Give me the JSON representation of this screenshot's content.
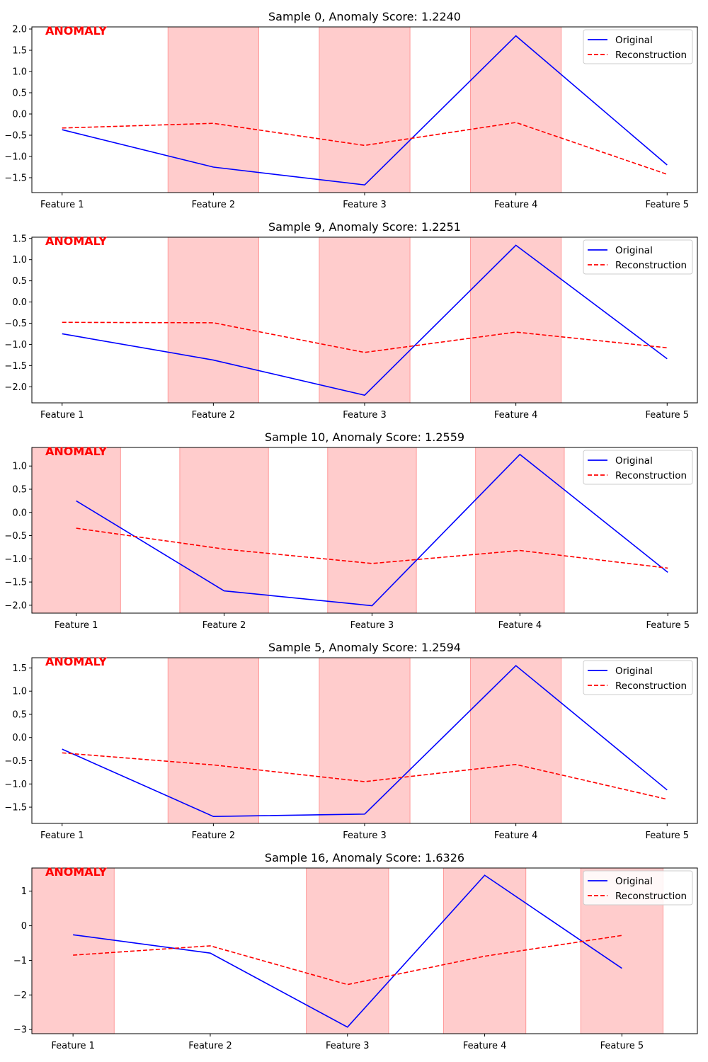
{
  "legend": {
    "original_label": "Original",
    "reconstruction_label": "Reconstruction",
    "original_color": "#0000ff",
    "reconstruction_color": "#ff0000"
  },
  "anomaly_label": "ANOMALY",
  "highlight_color": "#ff9999",
  "chart_data": [
    {
      "type": "line",
      "title": "Sample 0, Anomaly Score: 1.2240",
      "categories": [
        "Feature 1",
        "Feature 2",
        "Feature 3",
        "Feature 4",
        "Feature 5"
      ],
      "xlim": [
        -0.2,
        4.2
      ],
      "ylim": [
        -1.85,
        2.05
      ],
      "yticks": [
        -1.5,
        -1.0,
        -0.5,
        0.0,
        0.5,
        1.0,
        1.5,
        2.0
      ],
      "ytick_labels": [
        "−1.5",
        "−1.0",
        "−0.5",
        "0.0",
        "0.5",
        "1.0",
        "1.5",
        "2.0"
      ],
      "highlight_spans": [
        [
          0.7,
          1.3
        ],
        [
          1.7,
          2.3
        ],
        [
          2.7,
          3.3
        ]
      ],
      "series": [
        {
          "name": "Original",
          "values": [
            -0.37,
            -1.25,
            -1.67,
            1.84,
            -1.2
          ]
        },
        {
          "name": "Reconstruction",
          "values": [
            -0.33,
            -0.22,
            -0.74,
            -0.2,
            -1.42
          ]
        }
      ]
    },
    {
      "type": "line",
      "title": "Sample 9, Anomaly Score: 1.2251",
      "categories": [
        "Feature 1",
        "Feature 2",
        "Feature 3",
        "Feature 4",
        "Feature 5"
      ],
      "xlim": [
        -0.2,
        4.2
      ],
      "ylim": [
        -2.38,
        1.53
      ],
      "yticks": [
        -2.0,
        -1.5,
        -1.0,
        -0.5,
        0.0,
        0.5,
        1.0,
        1.5
      ],
      "ytick_labels": [
        "−2.0",
        "−1.5",
        "−1.0",
        "−0.5",
        "0.0",
        "0.5",
        "1.0",
        "1.5"
      ],
      "highlight_spans": [
        [
          0.7,
          1.3
        ],
        [
          1.7,
          2.3
        ],
        [
          2.7,
          3.3
        ]
      ],
      "series": [
        {
          "name": "Original",
          "values": [
            -0.75,
            -1.37,
            -2.2,
            1.34,
            -1.34
          ]
        },
        {
          "name": "Reconstruction",
          "values": [
            -0.48,
            -0.49,
            -1.19,
            -0.71,
            -1.08
          ]
        }
      ]
    },
    {
      "type": "line",
      "title": "Sample 10, Anomaly Score: 1.2559",
      "categories": [
        "Feature 1",
        "Feature 2",
        "Feature 3",
        "Feature 4",
        "Feature 5"
      ],
      "xlim": [
        -0.3,
        4.2
      ],
      "ylim": [
        -2.17,
        1.4
      ],
      "yticks": [
        -2.0,
        -1.5,
        -1.0,
        -0.5,
        0.0,
        0.5,
        1.0
      ],
      "ytick_labels": [
        "−2.0",
        "−1.5",
        "−1.0",
        "−0.5",
        "0.0",
        "0.5",
        "1.0"
      ],
      "highlight_spans": [
        [
          -0.3,
          0.3
        ],
        [
          0.7,
          1.3
        ],
        [
          1.7,
          2.3
        ],
        [
          2.7,
          3.3
        ]
      ],
      "series": [
        {
          "name": "Original",
          "values": [
            0.25,
            -1.69,
            -2.01,
            1.25,
            -1.29
          ]
        },
        {
          "name": "Reconstruction",
          "values": [
            -0.34,
            -0.79,
            -1.1,
            -0.82,
            -1.2
          ]
        }
      ]
    },
    {
      "type": "line",
      "title": "Sample 5, Anomaly Score: 1.2594",
      "categories": [
        "Feature 1",
        "Feature 2",
        "Feature 3",
        "Feature 4",
        "Feature 5"
      ],
      "xlim": [
        -0.2,
        4.2
      ],
      "ylim": [
        -1.85,
        1.72
      ],
      "yticks": [
        -1.5,
        -1.0,
        -0.5,
        0.0,
        0.5,
        1.0,
        1.5
      ],
      "ytick_labels": [
        "−1.5",
        "−1.0",
        "−0.5",
        "0.0",
        "0.5",
        "1.0",
        "1.5"
      ],
      "highlight_spans": [
        [
          0.7,
          1.3
        ],
        [
          1.7,
          2.3
        ],
        [
          2.7,
          3.3
        ]
      ],
      "series": [
        {
          "name": "Original",
          "values": [
            -0.25,
            -1.7,
            -1.65,
            1.55,
            -1.13
          ]
        },
        {
          "name": "Reconstruction",
          "values": [
            -0.33,
            -0.59,
            -0.95,
            -0.58,
            -1.33
          ]
        }
      ]
    },
    {
      "type": "line",
      "title": "Sample 16, Anomaly Score: 1.6326",
      "categories": [
        "Feature 1",
        "Feature 2",
        "Feature 3",
        "Feature 4",
        "Feature 5"
      ],
      "xlim": [
        -0.3,
        4.55
      ],
      "ylim": [
        -3.12,
        1.67
      ],
      "yticks": [
        -3,
        -2,
        -1,
        0,
        1
      ],
      "ytick_labels": [
        "−3",
        "−2",
        "−1",
        "0",
        "1"
      ],
      "highlight_spans": [
        [
          -0.3,
          0.3
        ],
        [
          1.7,
          2.3
        ],
        [
          2.7,
          3.3
        ],
        [
          3.7,
          4.3
        ]
      ],
      "series": [
        {
          "name": "Original",
          "values": [
            -0.26,
            -0.79,
            -2.93,
            1.46,
            -1.23
          ]
        },
        {
          "name": "Reconstruction",
          "values": [
            -0.85,
            -0.58,
            -1.7,
            -0.88,
            -0.28
          ]
        }
      ]
    }
  ]
}
